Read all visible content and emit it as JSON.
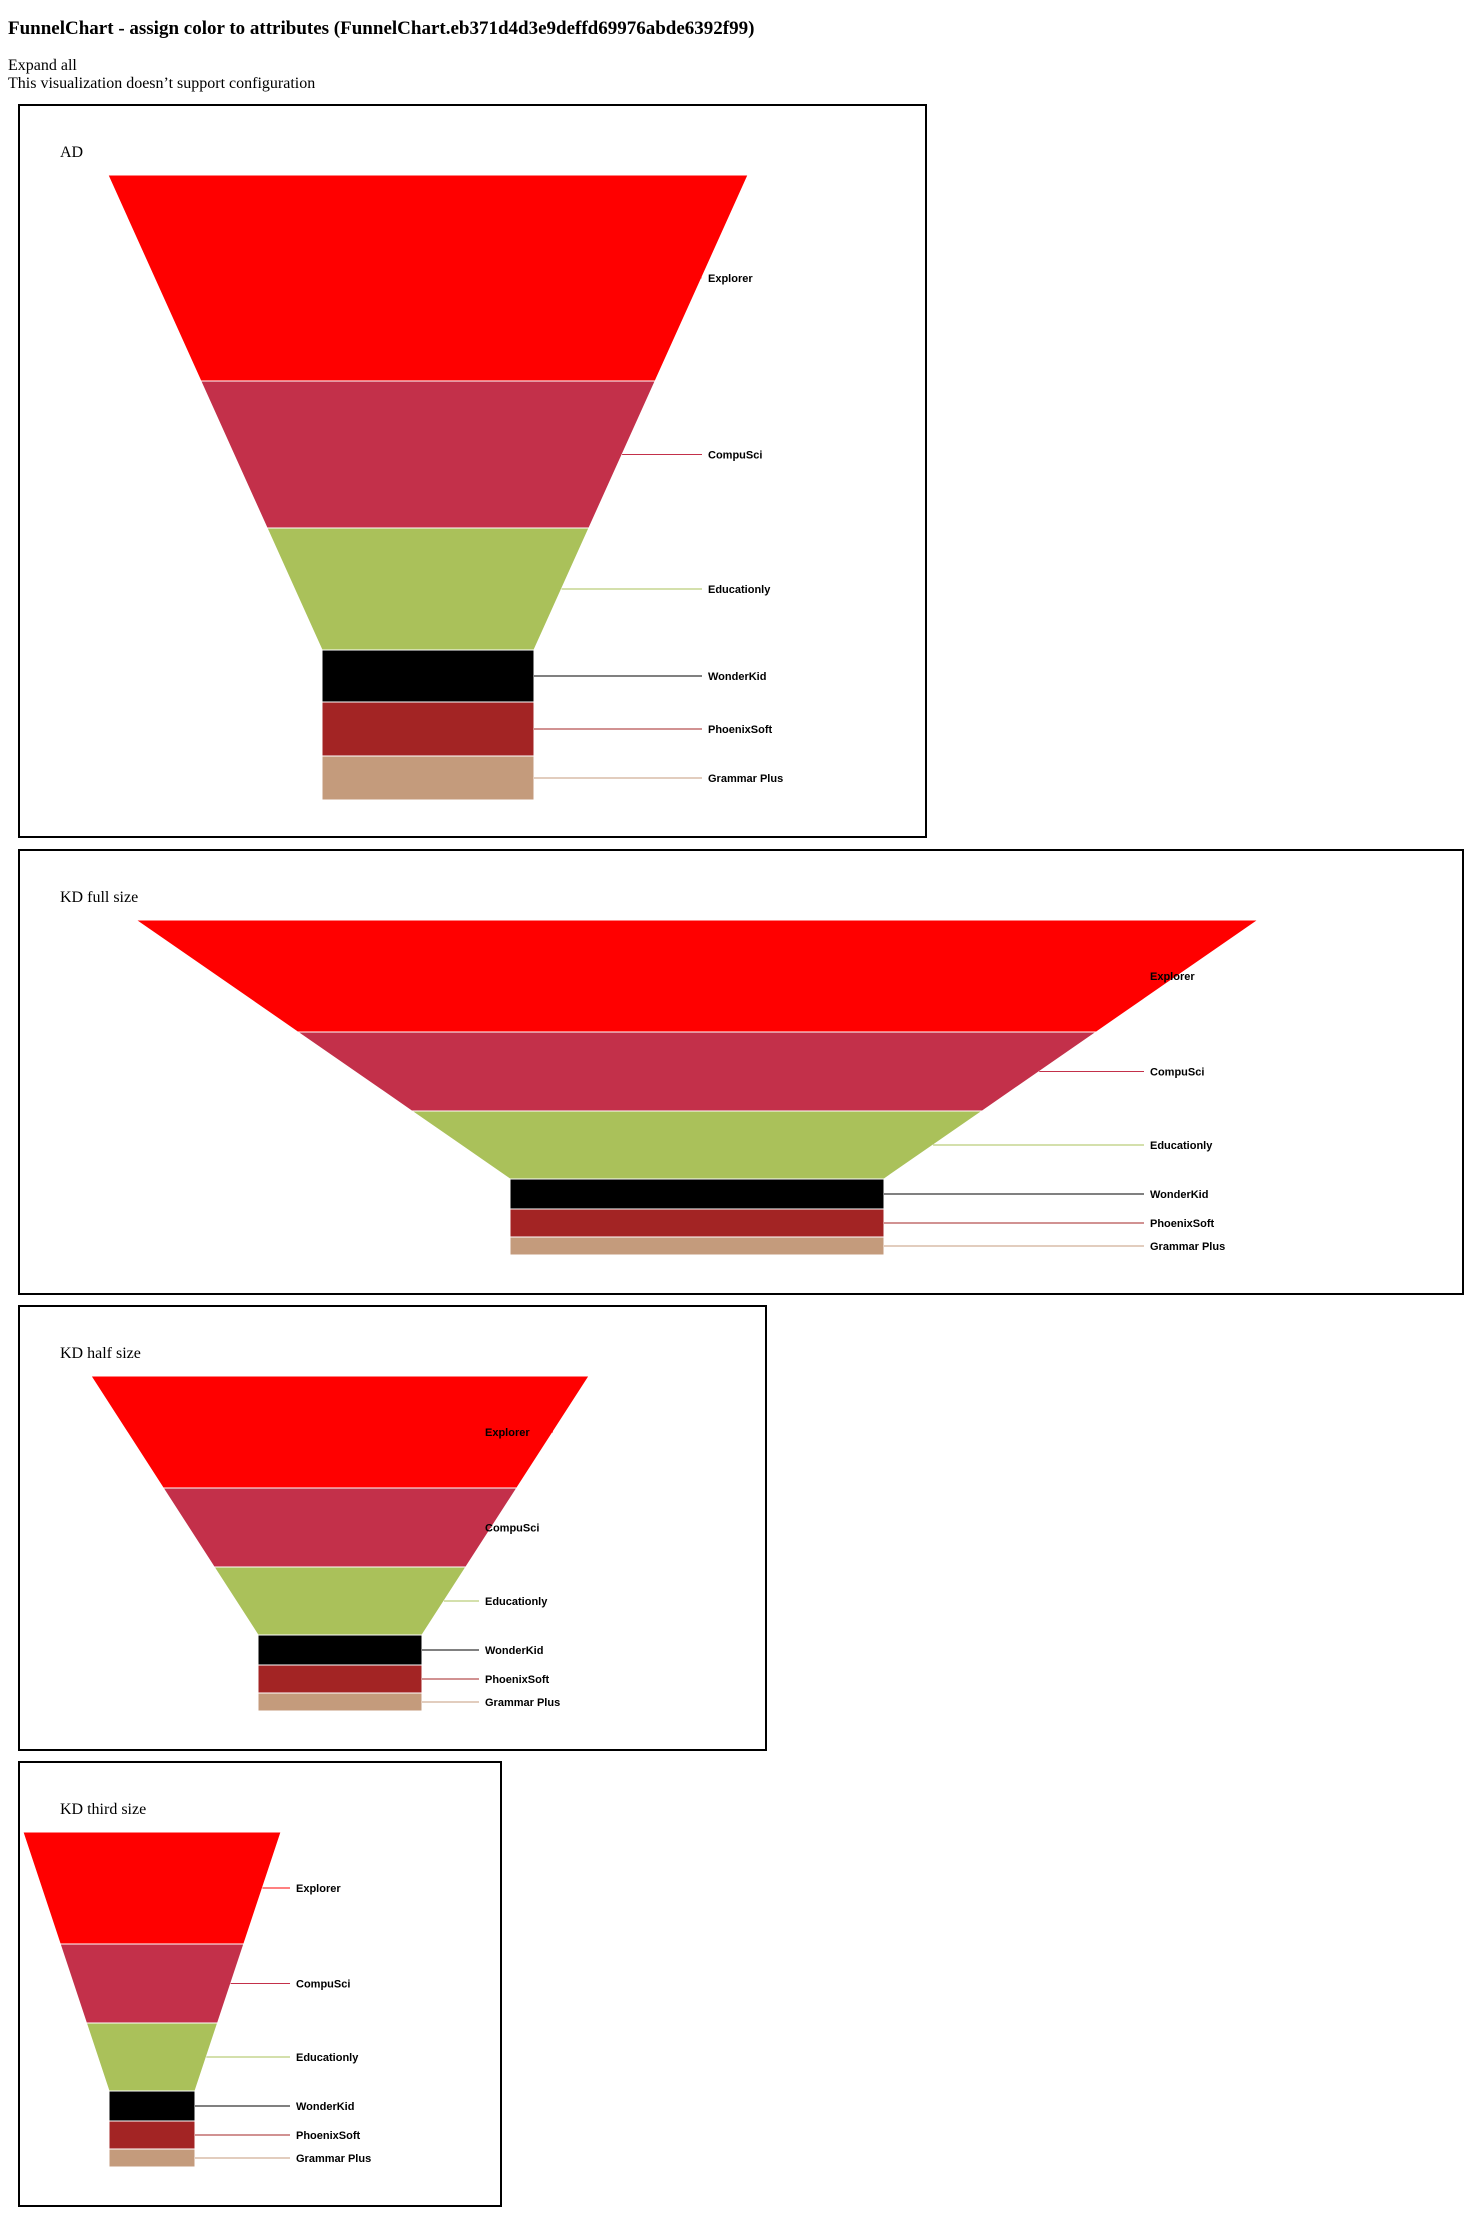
{
  "page": {
    "title": "FunnelChart - assign color to attributes (FunnelChart.eb371d4d3e9deffd69976abde6392f99)",
    "expand_all": "Expand all",
    "config_note": "This visualization doesn’t support configuration"
  },
  "colors": {
    "Explorer": "#ff0000",
    "CompuSci": "#c3304a",
    "Educationly": "#aac15a",
    "WonderKid": "#000000",
    "PhoenixSoft": "#a32424",
    "Grammar Plus": "#c49b7c"
  },
  "chart_data": [
    {
      "type": "funnel",
      "title": "AD",
      "categories": [
        "Explorer",
        "CompuSci",
        "Educationly",
        "WonderKid",
        "PhoenixSoft",
        "Grammar Plus"
      ]
    },
    {
      "type": "funnel",
      "title": "KD full size",
      "categories": [
        "Explorer",
        "CompuSci",
        "Educationly",
        "WonderKid",
        "PhoenixSoft",
        "Grammar Plus"
      ]
    },
    {
      "type": "funnel",
      "title": "KD half size",
      "categories": [
        "Explorer",
        "CompuSci",
        "Educationly",
        "WonderKid",
        "PhoenixSoft",
        "Grammar Plus"
      ]
    },
    {
      "type": "funnel",
      "title": "KD third size",
      "categories": [
        "Explorer",
        "CompuSci",
        "Educationly",
        "WonderKid",
        "PhoenixSoft",
        "Grammar Plus"
      ]
    }
  ]
}
